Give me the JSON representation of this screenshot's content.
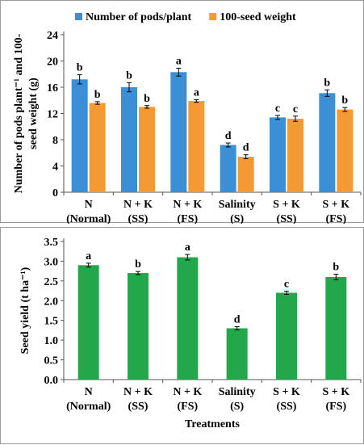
{
  "chart_data": [
    {
      "type": "bar",
      "title": "",
      "xlabel": "",
      "ylabel": "Number of pods plant⁻¹ and 100-seed weight (g)",
      "ylabel_lines": [
        "Number of pods plant⁻¹ and 100-",
        "seed weight (g)"
      ],
      "ylim": [
        0,
        24
      ],
      "yticks": [
        0,
        4,
        8,
        12,
        16,
        20,
        24
      ],
      "grid": false,
      "legend_position": "top",
      "categories": [
        [
          "N",
          "(Normal)"
        ],
        [
          "N + K",
          "(SS)"
        ],
        [
          "N + K",
          "(FS)"
        ],
        [
          "Salinity",
          "(S)"
        ],
        [
          "S + K",
          "(SS)"
        ],
        [
          "S + K",
          "(FS)"
        ]
      ],
      "series": [
        {
          "name": "Number of pods/plant",
          "color": "#3b8fd6",
          "values": [
            17.2,
            16.0,
            18.3,
            7.2,
            11.4,
            15.1
          ],
          "errors": [
            0.7,
            0.7,
            0.6,
            0.3,
            0.3,
            0.5
          ],
          "letters": [
            "b",
            "b",
            "a",
            "d",
            "c",
            "b"
          ]
        },
        {
          "name": "100-seed weight",
          "color": "#f39a35",
          "values": [
            13.6,
            13.0,
            13.9,
            5.4,
            11.2,
            12.6
          ],
          "errors": [
            0.2,
            0.2,
            0.2,
            0.3,
            0.4,
            0.3
          ],
          "letters": [
            "b",
            "b",
            "a",
            "d",
            "c",
            "b"
          ]
        }
      ]
    },
    {
      "type": "bar",
      "title": "",
      "xlabel": "Treatments",
      "ylabel": "Seed yield (t ha⁻¹)",
      "ylim": [
        0,
        3.5
      ],
      "yticks": [
        "0.0",
        "0.5",
        "1.0",
        "1.5",
        "2.0",
        "2.5",
        "3.0",
        "3.5"
      ],
      "grid": false,
      "categories": [
        [
          "N",
          "(Normal)"
        ],
        [
          "N + K",
          "(SS)"
        ],
        [
          "N + K",
          "(FS)"
        ],
        [
          "Salinity",
          "(S)"
        ],
        [
          "S + K",
          "(SS)"
        ],
        [
          "S + K",
          "(FS)"
        ]
      ],
      "series": [
        {
          "color": "#22a84a",
          "values": [
            2.9,
            2.7,
            3.1,
            1.3,
            2.2,
            2.6
          ],
          "errors": [
            0.05,
            0.04,
            0.07,
            0.04,
            0.04,
            0.07
          ],
          "letters": [
            "a",
            "b",
            "a",
            "d",
            "c",
            "b"
          ]
        }
      ]
    }
  ]
}
